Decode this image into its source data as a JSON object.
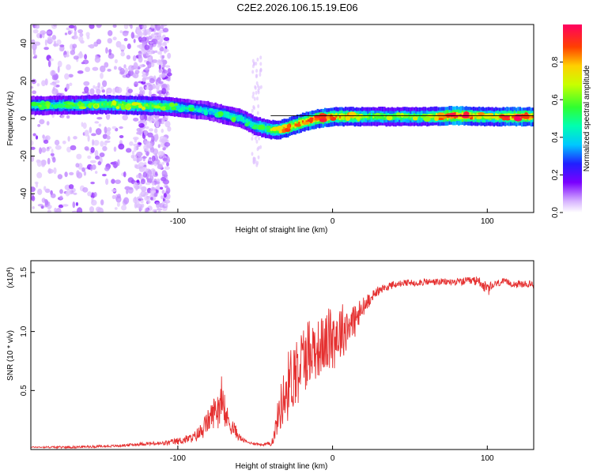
{
  "title": "C2E2.2026.106.15.19.E06",
  "chart_data": [
    {
      "type": "heatmap",
      "name": "spectrogram",
      "xlabel": "Height of straight line (km)",
      "ylabel": "Frequency (Hz)",
      "xlim": [
        -195,
        130
      ],
      "ylim": [
        -50,
        50
      ],
      "xticks": [
        -100,
        0,
        100
      ],
      "yticks": [
        -40,
        -20,
        0,
        20,
        40
      ],
      "xtick_labels": [
        "-100",
        "0",
        "100"
      ],
      "ytick_labels": [
        "-40",
        "-20",
        "0",
        "20",
        "40"
      ],
      "colorbar": {
        "label": "Normalized spectral amplitude",
        "range": [
          0,
          1
        ],
        "ticks": [
          "0.0",
          "0.2",
          "0.4",
          "0.6",
          "0.8"
        ]
      },
      "ridge": {
        "x": [
          -195,
          -170,
          -150,
          -130,
          -110,
          -100,
          -90,
          -80,
          -70,
          -60,
          -50,
          -40,
          -35,
          -30,
          -20,
          -10,
          0,
          20,
          40,
          60,
          80,
          100,
          120,
          130
        ],
        "y": [
          7,
          7,
          7.5,
          7,
          6.5,
          6,
          5,
          4,
          2,
          0,
          -4,
          -6,
          -6,
          -5,
          -2,
          0,
          1,
          1,
          1,
          1,
          1.5,
          1,
          1,
          1
        ],
        "amplitude": [
          0.45,
          0.5,
          0.55,
          0.6,
          0.55,
          0.45,
          0.4,
          0.4,
          0.45,
          0.45,
          0.5,
          0.6,
          0.7,
          0.75,
          0.8,
          0.85,
          0.8,
          0.6,
          0.55,
          0.6,
          0.95,
          0.65,
          0.9,
          0.8
        ]
      }
    },
    {
      "type": "line",
      "name": "snr",
      "xlabel": "Height of straight line (km)",
      "ylabel": "SNR (10 * v/v)",
      "yscale_label": "(x10",
      "yscale_exponent": "4",
      "yscale_suffix": ")",
      "xlim": [
        -195,
        130
      ],
      "ylim": [
        0,
        1.6
      ],
      "xticks": [
        -100,
        0,
        100
      ],
      "yticks": [
        0.5,
        1.0,
        1.5
      ],
      "xtick_labels": [
        "-100",
        "0",
        "100"
      ],
      "ytick_labels": [
        "0.5",
        "1.0",
        "1.5"
      ],
      "color": "#e53030",
      "series": [
        {
          "name": "SNR",
          "x": [
            -195,
            -170,
            -140,
            -120,
            -110,
            -100,
            -90,
            -85,
            -80,
            -75,
            -72,
            -70,
            -65,
            -60,
            -55,
            -50,
            -45,
            -40,
            -38,
            -35,
            -30,
            -25,
            -20,
            -15,
            -10,
            -5,
            0,
            5,
            10,
            15,
            20,
            25,
            30,
            40,
            60,
            80,
            95,
            100,
            105,
            110,
            120,
            130
          ],
          "y": [
            0.02,
            0.02,
            0.03,
            0.05,
            0.05,
            0.07,
            0.1,
            0.15,
            0.25,
            0.35,
            0.4,
            0.3,
            0.2,
            0.1,
            0.06,
            0.05,
            0.04,
            0.05,
            0.1,
            0.3,
            0.5,
            0.65,
            0.75,
            0.85,
            0.85,
            0.9,
            0.95,
            1.0,
            1.05,
            1.1,
            1.2,
            1.3,
            1.35,
            1.4,
            1.42,
            1.42,
            1.43,
            1.35,
            1.4,
            1.42,
            1.4,
            1.4
          ],
          "noise": [
            0.005,
            0.01,
            0.01,
            0.015,
            0.02,
            0.03,
            0.04,
            0.08,
            0.1,
            0.15,
            0.18,
            0.12,
            0.08,
            0.03,
            0.01,
            0.01,
            0.01,
            0.02,
            0.05,
            0.15,
            0.3,
            0.3,
            0.3,
            0.3,
            0.25,
            0.25,
            0.3,
            0.25,
            0.2,
            0.15,
            0.1,
            0.05,
            0.04,
            0.03,
            0.03,
            0.03,
            0.04,
            0.06,
            0.03,
            0.03,
            0.03,
            0.03
          ]
        }
      ]
    }
  ]
}
